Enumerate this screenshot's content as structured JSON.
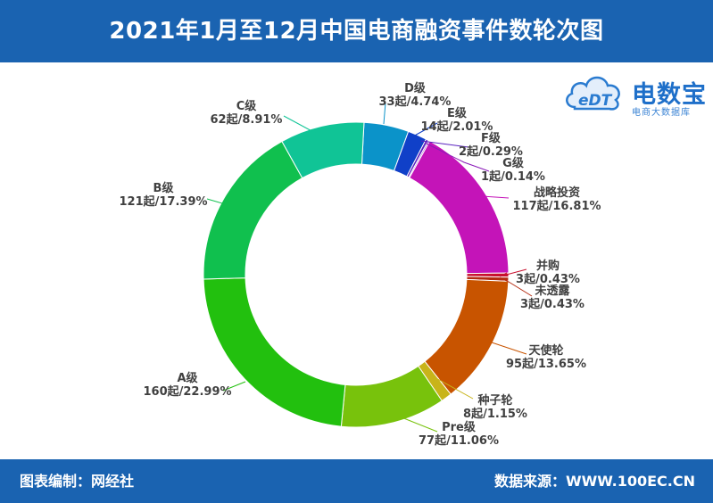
{
  "header": {
    "title": "2021年1月至12月中国电商融资事件数轮次图"
  },
  "footer": {
    "left": "图表编制：网经社",
    "right": "数据来源：WWW.100EC.CN"
  },
  "logo": {
    "brand": "电数宝",
    "sub": "电商大数据库",
    "mark_text": "eDT"
  },
  "colors": {
    "header_bg": "#1a63b1"
  },
  "chart_data": {
    "type": "pie",
    "donut": true,
    "title": "2021年1月至12月中国电商融资事件数轮次图",
    "series": [
      {
        "name": "D级",
        "value": 33,
        "percent": 4.74,
        "label_name": "D级",
        "label_value": "33起/4.74%",
        "color": "#0b93c9"
      },
      {
        "name": "E级",
        "value": 14,
        "percent": 2.01,
        "label_name": "E级",
        "label_value": "14起/2.01%",
        "color": "#1040c8"
      },
      {
        "name": "F级",
        "value": 2,
        "percent": 0.29,
        "label_name": "F级",
        "label_value": "2起/0.29%",
        "color": "#5a22c0"
      },
      {
        "name": "G级",
        "value": 1,
        "percent": 0.14,
        "label_name": "G级",
        "label_value": "1起/0.14%",
        "color": "#8a1ab8"
      },
      {
        "name": "战略投资",
        "value": 117,
        "percent": 16.81,
        "label_name": "战略投资",
        "label_value": "117起/16.81%",
        "color": "#c414b8"
      },
      {
        "name": "并购",
        "value": 3,
        "percent": 0.43,
        "label_name": "并购",
        "label_value": "3起/0.43%",
        "color": "#c8102e"
      },
      {
        "name": "未透露",
        "value": 3,
        "percent": 0.43,
        "label_name": "未透露",
        "label_value": "3起/0.43%",
        "color": "#b42a10"
      },
      {
        "name": "天使轮",
        "value": 95,
        "percent": 13.65,
        "label_name": "天使轮",
        "label_value": "95起/13.65%",
        "color": "#c85400"
      },
      {
        "name": "种子轮",
        "value": 8,
        "percent": 1.15,
        "label_name": "种子轮",
        "label_value": "8起/1.15%",
        "color": "#c8b41a"
      },
      {
        "name": "Pre级",
        "value": 77,
        "percent": 11.06,
        "label_name": "Pre级",
        "label_value": "77起/11.06%",
        "color": "#78c20c"
      },
      {
        "name": "A级",
        "value": 160,
        "percent": 22.99,
        "label_name": "A级",
        "label_value": "160起/22.99%",
        "color": "#22c00e"
      },
      {
        "name": "B级",
        "value": 121,
        "percent": 17.39,
        "label_name": "B级",
        "label_value": "121起/17.39%",
        "color": "#10c04e"
      },
      {
        "name": "C级",
        "value": 62,
        "percent": 8.91,
        "label_name": "C级",
        "label_value": "62起/8.91%",
        "color": "#10c496"
      }
    ]
  }
}
